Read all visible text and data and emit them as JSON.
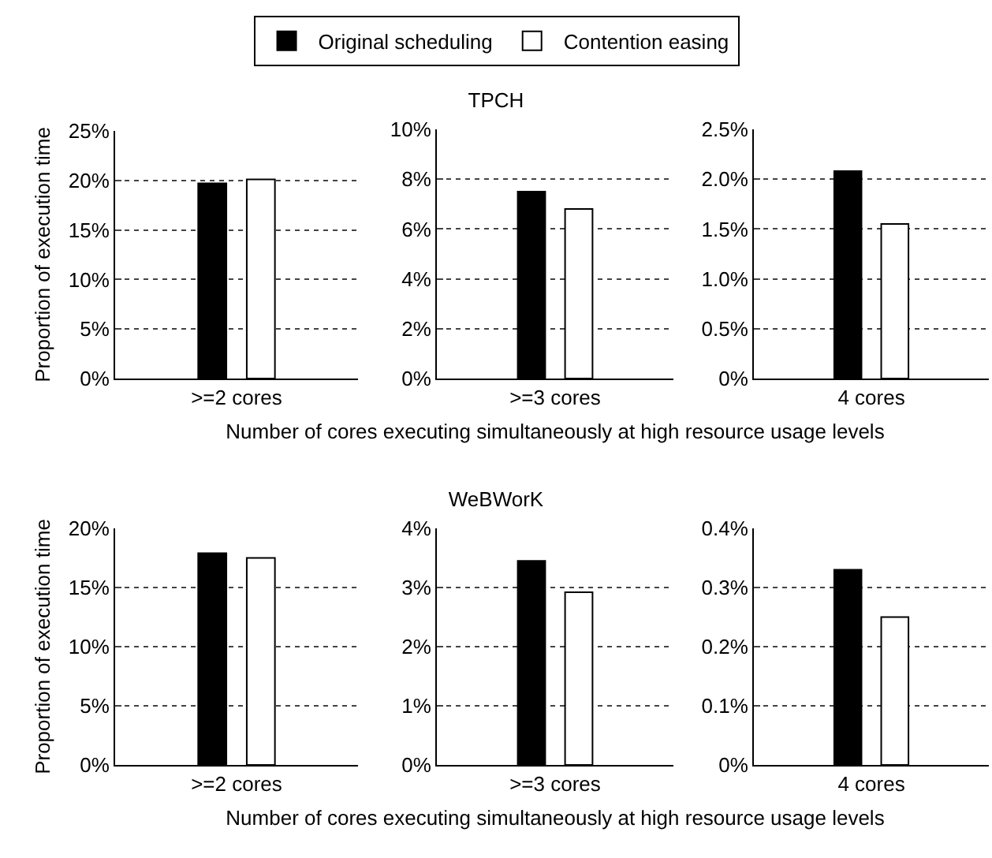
{
  "chart_data": [
    {
      "type": "bar",
      "categories": [
        ">=2 cores"
      ],
      "ylabel": "Proportion of execution time",
      "legend": "top",
      "grid": "y",
      "series": [
        {
          "name": "Original scheduling",
          "color": "#000000",
          "values": [
            19.7
          ]
        },
        {
          "name": "Contention easing",
          "color": "#ffffff",
          "values": [
            20.1
          ]
        }
      ],
      "ylim": [
        0,
        25
      ],
      "yticks": [
        {
          "value": 0,
          "label": "0%"
        },
        {
          "value": 5,
          "label": "5%"
        },
        {
          "value": 10,
          "label": "10%"
        },
        {
          "value": 15,
          "label": "15%"
        },
        {
          "value": 20,
          "label": "20%"
        },
        {
          "value": 25,
          "label": "25%"
        }
      ]
    },
    {
      "type": "bar",
      "title": "TPCH",
      "xlabel": "Number of cores executing simultaneously at high resource usage levels",
      "categories": [
        ">=3 cores"
      ],
      "grid": "y",
      "series": [
        {
          "color": "#000000",
          "values": [
            7.5
          ]
        },
        {
          "color": "#ffffff",
          "values": [
            6.8
          ]
        }
      ],
      "ylim": [
        0,
        10
      ],
      "yticks": [
        {
          "value": 0,
          "label": "0%"
        },
        {
          "value": 2,
          "label": "2%"
        },
        {
          "value": 4,
          "label": "4%"
        },
        {
          "value": 6,
          "label": "6%"
        },
        {
          "value": 8,
          "label": "8%"
        },
        {
          "value": 10,
          "label": "10%"
        }
      ]
    },
    {
      "type": "bar",
      "categories": [
        "4 cores"
      ],
      "grid": "y",
      "series": [
        {
          "color": "#000000",
          "values": [
            2.08
          ]
        },
        {
          "color": "#ffffff",
          "values": [
            1.55
          ]
        }
      ],
      "ylim": [
        0,
        2.5
      ],
      "yticks": [
        {
          "value": 0,
          "label": "0%"
        },
        {
          "value": 0.5,
          "label": "0.5%"
        },
        {
          "value": 1,
          "label": "1.0%"
        },
        {
          "value": 1.5,
          "label": "1.5%"
        },
        {
          "value": 2,
          "label": "2.0%"
        },
        {
          "value": 2.5,
          "label": "2.5%"
        }
      ]
    },
    {
      "type": "bar",
      "categories": [
        ">=2 cores"
      ],
      "ylabel": "Proportion of execution time",
      "grid": "y",
      "series": [
        {
          "color": "#000000",
          "values": [
            17.9
          ]
        },
        {
          "color": "#ffffff",
          "values": [
            17.5
          ]
        }
      ],
      "ylim": [
        0,
        20
      ],
      "yticks": [
        {
          "value": 0,
          "label": "0%"
        },
        {
          "value": 5,
          "label": "5%"
        },
        {
          "value": 10,
          "label": "10%"
        },
        {
          "value": 15,
          "label": "15%"
        },
        {
          "value": 20,
          "label": "20%"
        }
      ]
    },
    {
      "type": "bar",
      "title": "WeBWorK",
      "xlabel": "Number of cores executing simultaneously at high resource usage levels",
      "categories": [
        ">=3 cores"
      ],
      "grid": "y",
      "series": [
        {
          "color": "#000000",
          "values": [
            3.45
          ]
        },
        {
          "color": "#ffffff",
          "values": [
            2.92
          ]
        }
      ],
      "ylim": [
        0,
        4
      ],
      "yticks": [
        {
          "value": 0,
          "label": "0%"
        },
        {
          "value": 1,
          "label": "1%"
        },
        {
          "value": 2,
          "label": "2%"
        },
        {
          "value": 3,
          "label": "3%"
        },
        {
          "value": 4,
          "label": "4%"
        }
      ]
    },
    {
      "type": "bar",
      "categories": [
        "4 cores"
      ],
      "grid": "y",
      "series": [
        {
          "color": "#000000",
          "values": [
            0.33
          ]
        },
        {
          "color": "#ffffff",
          "values": [
            0.25
          ]
        }
      ],
      "ylim": [
        0,
        0.4
      ],
      "yticks": [
        {
          "value": 0,
          "label": "0%"
        },
        {
          "value": 0.1,
          "label": "0.1%"
        },
        {
          "value": 0.2,
          "label": "0.2%"
        },
        {
          "value": 0.3,
          "label": "0.3%"
        },
        {
          "value": 0.4,
          "label": "0.4%"
        }
      ]
    }
  ]
}
